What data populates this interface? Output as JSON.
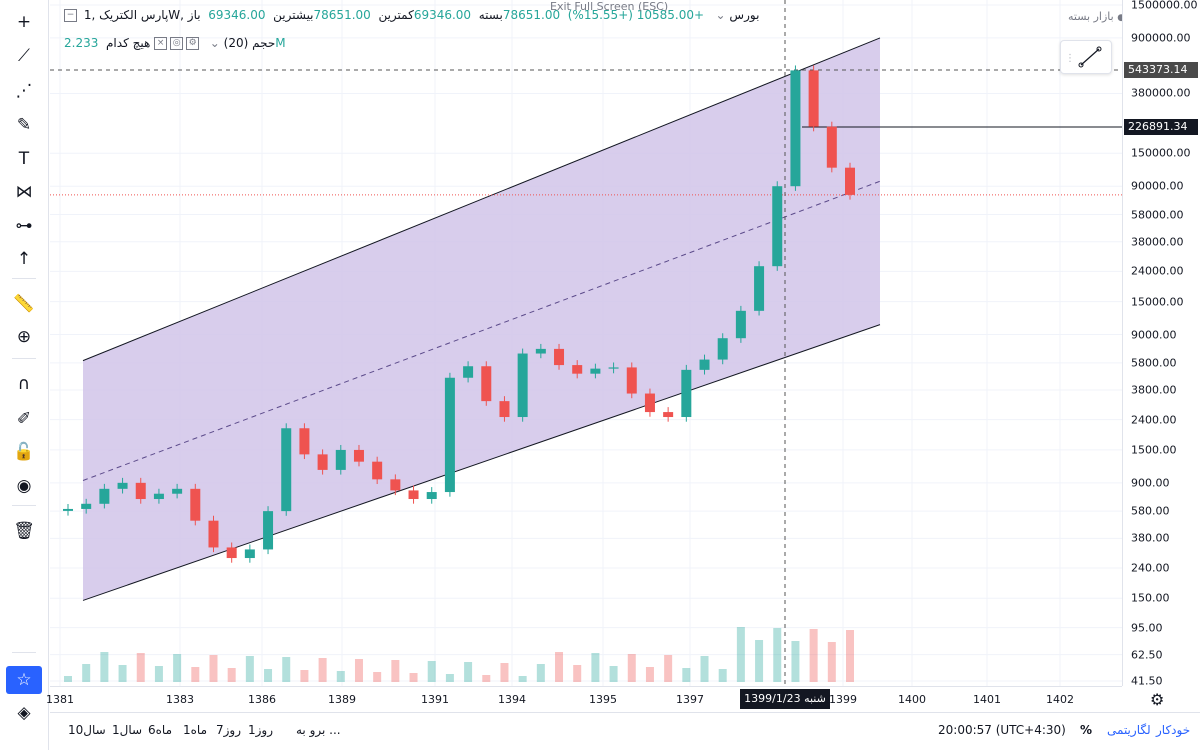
{
  "toolbar": {
    "tools": [
      {
        "id": "crosshair",
        "icon": "crosshair-icon",
        "glyph": "+"
      },
      {
        "id": "trendline",
        "icon": "trendline-icon",
        "glyph": "⟋"
      },
      {
        "id": "fib",
        "icon": "fib-tool-icon",
        "glyph": "⋰"
      },
      {
        "id": "brush",
        "icon": "brush-icon",
        "glyph": "✎"
      },
      {
        "id": "text",
        "icon": "text-icon",
        "glyph": "T"
      },
      {
        "id": "pattern",
        "icon": "pattern-icon",
        "glyph": "⋈"
      },
      {
        "id": "prediction",
        "icon": "prediction-icon",
        "glyph": "⊶"
      },
      {
        "id": "arrow",
        "icon": "arrow-up-icon",
        "glyph": "↑"
      },
      {
        "id": "measure",
        "icon": "ruler-icon",
        "glyph": "📏"
      },
      {
        "id": "zoom",
        "icon": "zoom-in-icon",
        "glyph": "⊕"
      },
      {
        "id": "magnet",
        "icon": "magnet-icon",
        "glyph": "∩"
      },
      {
        "id": "lock-draw",
        "icon": "pencil-lock-icon",
        "glyph": "✐"
      },
      {
        "id": "lock",
        "icon": "unlock-icon",
        "glyph": "🔓"
      },
      {
        "id": "eye",
        "icon": "eye-icon",
        "glyph": "◉"
      },
      {
        "id": "trash",
        "icon": "trash-icon",
        "glyph": "🗑"
      },
      {
        "id": "favorite",
        "icon": "star-icon",
        "glyph": "☆"
      },
      {
        "id": "layers",
        "icon": "layers-icon",
        "glyph": "◈"
      }
    ]
  },
  "legend": {
    "symbol": "پارس الکتریک ,1W, بورس",
    "open_label": "باز",
    "open_value": "69346.00",
    "high_label": "بیشترین",
    "high_value": "78651.00",
    "low_label": "کمترین",
    "low_value": "69346.00",
    "close_label": "بسته",
    "close_value": "78651.00",
    "change": "+10585.00 (+15.55%)",
    "volume_label": "حجم (20)",
    "volume_sub": "هیچ کدام",
    "volume_value": "2.233M"
  },
  "header": {
    "fullscreen_hint": "Exit Full Screen (ESC)",
    "market_status": "بازار بسته"
  },
  "price_scale": {
    "ticks": [
      "1500000.00",
      "900000.00",
      "380000.00",
      "150000.00",
      "90000.00",
      "58000.00",
      "38000.00",
      "24000.00",
      "15000.00",
      "9000.00",
      "5800.00",
      "3800.00",
      "2400.00",
      "1500.00",
      "900.00",
      "580.00",
      "380.00",
      "240.00",
      "150.00",
      "95.00",
      "62.50",
      "41.50"
    ],
    "label_high": "543373.14",
    "label_cross": "226891.34",
    "label_high_color": "#4a4a4a",
    "label_cross_color": "#131722"
  },
  "time_scale": {
    "ticks": [
      "1381",
      "1383",
      "1386",
      "1389",
      "1391",
      "1394",
      "1395",
      "1397",
      "1399",
      "1400",
      "1401",
      "1402"
    ],
    "crosshair_date": "شنبه 1399/1/23"
  },
  "bottom_bar": {
    "ranges": [
      "10سال",
      "1سال",
      "6ماه",
      "1ماه",
      "7روز",
      "1روز"
    ],
    "goto": "برو به ...",
    "clock": "20:00:57 (UTC+4:30)",
    "percent": "%",
    "log": "لگاریتمی",
    "auto": "خودکار"
  },
  "colors": {
    "up": "#26a69a",
    "down": "#ef5350",
    "channel_fill": "#d1c4e9",
    "channel_line": "#131722",
    "accent": "#2962ff"
  },
  "chart_data": {
    "type": "candlestick",
    "scale": "log",
    "ylim": [
      41.5,
      1500000
    ],
    "x": [
      "1381",
      "1383",
      "1386",
      "1389",
      "1391",
      "1394",
      "1395",
      "1397",
      "1399",
      "1400",
      "1401",
      "1402"
    ],
    "close_series": [
      600,
      650,
      820,
      900,
      700,
      760,
      820,
      500,
      330,
      280,
      320,
      580,
      2100,
      1400,
      1100,
      1500,
      1250,
      950,
      800,
      700,
      780,
      4600,
      5500,
      3200,
      2500,
      6700,
      7200,
      5600,
      4900,
      5300,
      5400,
      3600,
      2700,
      2500,
      5200,
      6100,
      8500,
      13000,
      26000,
      90000,
      543373,
      226891,
      120000,
      78651
    ],
    "channel_top": [
      6000,
      900000
    ],
    "channel_bottom": [
      145,
      10500
    ],
    "horizontal_level": 78651
  }
}
